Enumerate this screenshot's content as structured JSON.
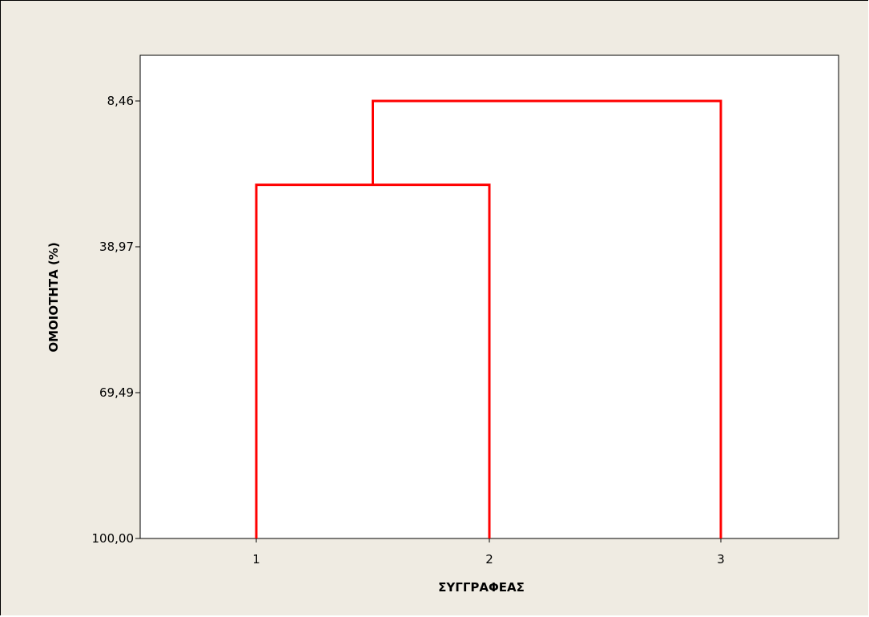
{
  "chart_data": {
    "type": "dendrogram",
    "title": "",
    "xlabel": "ΣΥΓΓΡΑΦΕΑΣ",
    "ylabel": "ΟΜΟΙΟΤΗΤΑ (%)",
    "leaves": [
      "1",
      "2",
      "3"
    ],
    "y_ticks": [
      "8,46",
      "38,97",
      "69,49",
      "100,00"
    ],
    "y_tick_values": [
      8.46,
      38.97,
      69.49,
      100.0
    ],
    "ylim": [
      8.46,
      100.0
    ],
    "y_axis_inverted": true,
    "merges": [
      {
        "left": [
          "1"
        ],
        "right": [
          "2"
        ],
        "similarity": 26.0
      },
      {
        "left": [
          "1",
          "2"
        ],
        "right": [
          "3"
        ],
        "similarity": 8.46
      }
    ],
    "grid": false,
    "line_color": "#ff0000"
  }
}
